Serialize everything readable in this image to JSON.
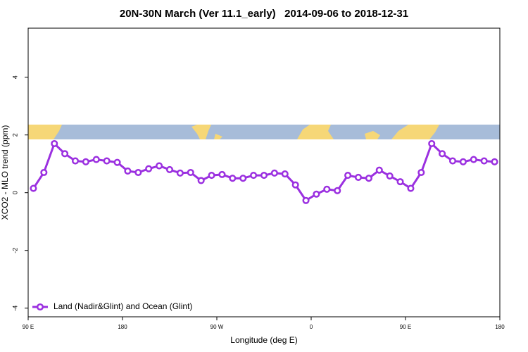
{
  "chart_data": {
    "type": "line",
    "title": "20N-30N March (Ver 11.1_early)   2014-09-06 to 2018-12-31",
    "x_label": "Longitude (deg E)",
    "y_label": "XCO2 - MLO trend (ppm)",
    "x": [
      95,
      105,
      115,
      125,
      135,
      145,
      155,
      165,
      175,
      185,
      195,
      205,
      215,
      225,
      235,
      245,
      255,
      265,
      275,
      285,
      295,
      305,
      315,
      325,
      335,
      345,
      355,
      365,
      375,
      385,
      395,
      405,
      415,
      425,
      435,
      445,
      455,
      465,
      475,
      485,
      495,
      505,
      515,
      525,
      535
    ],
    "series": [
      {
        "name": "Land (Nadir&Glint) and Ocean (Glint)",
        "color": "#9b30e0",
        "values": [
          0.15,
          0.7,
          1.7,
          1.35,
          1.1,
          1.07,
          1.15,
          1.1,
          1.05,
          0.75,
          0.7,
          0.83,
          0.93,
          0.8,
          0.68,
          0.7,
          0.42,
          0.6,
          0.63,
          0.5,
          0.5,
          0.6,
          0.6,
          0.68,
          0.65,
          0.27,
          -0.27,
          -0.05,
          0.12,
          0.07,
          0.6,
          0.53,
          0.5,
          0.78,
          0.58,
          0.38,
          0.15,
          0.7,
          1.7,
          1.35,
          1.1,
          1.07,
          1.15,
          1.1,
          1.07
        ]
      }
    ],
    "xlim": [
      90,
      540
    ],
    "xticks": [
      {
        "value": 90,
        "label": "90 E"
      },
      {
        "value": 180,
        "label": "180"
      },
      {
        "value": 270,
        "label": "90 W"
      },
      {
        "value": 360,
        "label": "0"
      },
      {
        "value": 450,
        "label": "90 E"
      },
      {
        "value": 540,
        "label": "180"
      }
    ],
    "ylim": [
      -4.3,
      5.7
    ],
    "yticks": [
      -4,
      -2,
      0,
      2,
      4
    ],
    "legend": "bottom-left",
    "grid": false
  }
}
